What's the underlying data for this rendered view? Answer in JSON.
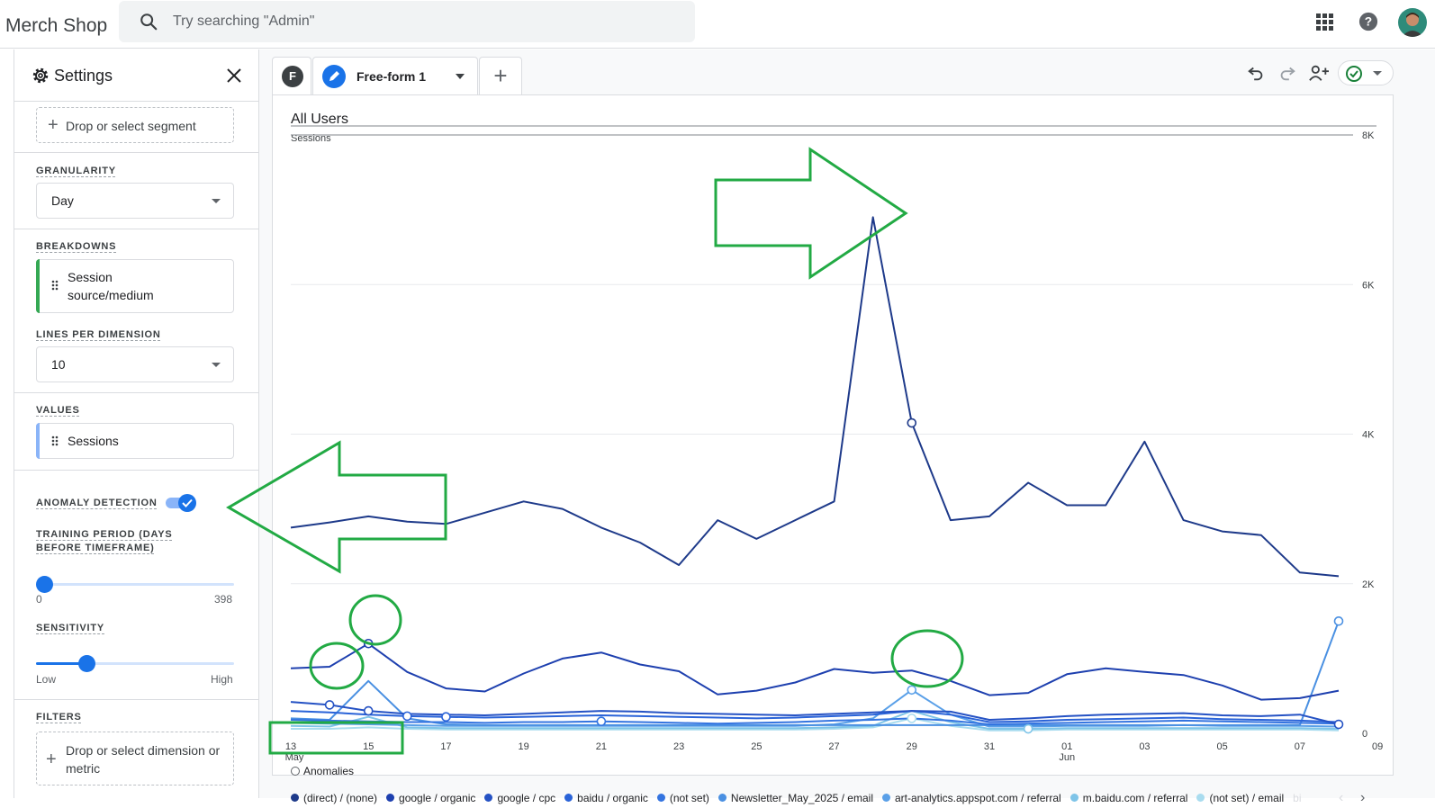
{
  "app": {
    "brand": "Merch Shop",
    "search_placeholder": "Try searching \"Admin\""
  },
  "settings": {
    "title": "Settings",
    "segment_placeholder": "Drop or select segment",
    "granularity": {
      "label": "GRANULARITY",
      "value": "Day"
    },
    "breakdowns": {
      "label": "BREAKDOWNS",
      "value": "Session source/medium",
      "accent": "#34a853"
    },
    "lines_per_dimension": {
      "label": "LINES PER DIMENSION",
      "value": "10"
    },
    "values": {
      "label": "VALUES",
      "value": "Sessions",
      "accent": "#8ab4f8"
    },
    "anomaly_detection": {
      "label": "ANOMALY DETECTION",
      "enabled": true
    },
    "training_period": {
      "label": "TRAINING PERIOD (DAYS BEFORE TIMEFRAME)",
      "min": "0",
      "max": "398",
      "value": 0
    },
    "sensitivity": {
      "label": "SENSITIVITY",
      "low": "Low",
      "high": "High",
      "value_fraction": 0.26
    },
    "filters": {
      "label": "FILTERS",
      "placeholder": "Drop or select dimension or metric"
    }
  },
  "report": {
    "tab_badge": "F",
    "tab_name": "Free-form 1",
    "toolbar_icons": [
      "undo-icon",
      "redo-icon",
      "share-users-icon",
      "check-circle-icon"
    ]
  },
  "chart_data": {
    "type": "line",
    "title": "All Users",
    "ylabel": "Sessions",
    "ylim": [
      0,
      8000
    ],
    "y_ticks": [
      "0",
      "2K",
      "4K",
      "6K",
      "8K"
    ],
    "x_tick_labels": [
      "13",
      "15",
      "17",
      "19",
      "21",
      "23",
      "25",
      "27",
      "29",
      "31",
      "01",
      "03",
      "05",
      "07",
      "09"
    ],
    "x_tick_sublabels": {
      "13": "May",
      "01": "Jun"
    },
    "x": [
      "May 13",
      "May 14",
      "May 15",
      "May 16",
      "May 17",
      "May 18",
      "May 19",
      "May 20",
      "May 21",
      "May 22",
      "May 23",
      "May 24",
      "May 25",
      "May 26",
      "May 27",
      "May 28",
      "May 29",
      "May 30",
      "May 31",
      "Jun 01",
      "Jun 02",
      "Jun 03",
      "Jun 04",
      "Jun 05",
      "Jun 06",
      "Jun 07",
      "Jun 08",
      "Jun 09"
    ],
    "series": [
      {
        "name": "(direct) / (none)",
        "color": "#1e3a8a",
        "values": [
          2750,
          2820,
          2900,
          2830,
          2800,
          2950,
          3100,
          3000,
          2750,
          2550,
          2250,
          2850,
          2600,
          2850,
          3100,
          6900,
          4150,
          2850,
          2900,
          3350,
          3050,
          3050,
          3900,
          2850,
          2700,
          2650,
          2150,
          2100
        ]
      },
      {
        "name": "google / organic",
        "color": "#1e40af",
        "values": [
          870,
          890,
          1200,
          820,
          600,
          560,
          800,
          1000,
          1080,
          920,
          830,
          520,
          570,
          680,
          860,
          810,
          840,
          700,
          510,
          540,
          790,
          870,
          820,
          780,
          640,
          450,
          470,
          570
        ]
      },
      {
        "name": "google / cpc",
        "color": "#2552c4",
        "values": [
          420,
          380,
          300,
          260,
          250,
          240,
          260,
          280,
          300,
          290,
          270,
          260,
          250,
          240,
          260,
          280,
          300,
          290,
          180,
          200,
          230,
          250,
          260,
          270,
          240,
          230,
          250,
          120
        ]
      },
      {
        "name": "baidu / organic",
        "color": "#2a63d8",
        "values": [
          300,
          280,
          250,
          230,
          220,
          210,
          220,
          230,
          240,
          230,
          220,
          210,
          200,
          210,
          230,
          250,
          300,
          250,
          150,
          160,
          180,
          190,
          200,
          210,
          190,
          180,
          170,
          150
        ]
      },
      {
        "name": "(not set)",
        "color": "#3474e0",
        "values": [
          180,
          170,
          160,
          150,
          150,
          140,
          150,
          150,
          160,
          150,
          140,
          130,
          140,
          150,
          170,
          180,
          200,
          170,
          120,
          130,
          140,
          150,
          160,
          170,
          160,
          150,
          140,
          130
        ]
      },
      {
        "name": "Newsletter_May_2025 / email",
        "color": "#4a90e2",
        "values": [
          200,
          180,
          700,
          200,
          120,
          110,
          110,
          110,
          110,
          110,
          110,
          110,
          110,
          110,
          110,
          110,
          110,
          110,
          110,
          110,
          110,
          110,
          110,
          110,
          110,
          110,
          110,
          1500
        ]
      },
      {
        "name": "art-analytics.appspot.com / referral",
        "color": "#5aa0e8",
        "values": [
          140,
          130,
          120,
          110,
          100,
          100,
          100,
          100,
          100,
          100,
          100,
          100,
          100,
          100,
          120,
          200,
          580,
          250,
          90,
          90,
          100,
          100,
          100,
          110,
          100,
          100,
          100,
          90
        ]
      },
      {
        "name": "m.baidu.com / referral",
        "color": "#7ec4e8",
        "values": [
          100,
          90,
          220,
          80,
          70,
          70,
          70,
          70,
          70,
          70,
          70,
          70,
          70,
          70,
          80,
          100,
          300,
          150,
          60,
          60,
          70,
          70,
          70,
          70,
          70,
          70,
          70,
          60
        ]
      },
      {
        "name": "(not set) / email",
        "color": "#a9dcef",
        "values": [
          60,
          60,
          80,
          60,
          50,
          50,
          50,
          50,
          50,
          50,
          50,
          50,
          50,
          50,
          60,
          80,
          200,
          100,
          40,
          40,
          50,
          50,
          50,
          50,
          50,
          50,
          50,
          40
        ]
      }
    ],
    "anomalies": [
      {
        "series": 0,
        "index": 16
      },
      {
        "series": 1,
        "index": 2
      },
      {
        "series": 2,
        "index": 1
      },
      {
        "series": 2,
        "index": 2
      },
      {
        "series": 3,
        "index": 3
      },
      {
        "series": 3,
        "index": 4
      },
      {
        "series": 4,
        "index": 8
      },
      {
        "series": 5,
        "index": 27
      },
      {
        "series": 6,
        "index": 16
      },
      {
        "series": 7,
        "index": 19
      },
      {
        "series": 2,
        "index": 27
      },
      {
        "series": 8,
        "index": 16
      }
    ],
    "anomalies_legend": "Anomalies",
    "legend_more": "bi"
  },
  "annotation_color": "#22aa44"
}
